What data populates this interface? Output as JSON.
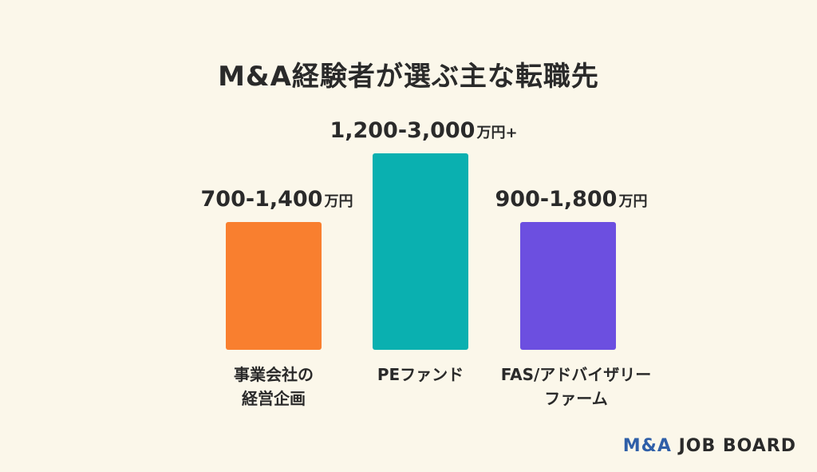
{
  "chart_data": {
    "type": "bar",
    "title": "M&A経験者が選ぶ主な転職先",
    "categories": [
      [
        "事業会社の",
        "経営企画"
      ],
      [
        "PEファンド"
      ],
      [
        "FAS/アドバイザリー",
        "ファーム"
      ]
    ],
    "ranges": [
      [
        700,
        1400
      ],
      [
        1200,
        3000
      ],
      [
        900,
        1800
      ]
    ],
    "value_labels": [
      {
        "main": "700-1,400",
        "unit": "万円"
      },
      {
        "main": "1,200-3,000",
        "unit": "万円+"
      },
      {
        "main": "900-1,800",
        "unit": "万円"
      }
    ],
    "unit": "万円",
    "colors": [
      "#f97f2f",
      "#0ab0b0",
      "#6c4fe0"
    ]
  },
  "brand": {
    "accent": "M&A",
    "rest": "JOB BOARD"
  }
}
